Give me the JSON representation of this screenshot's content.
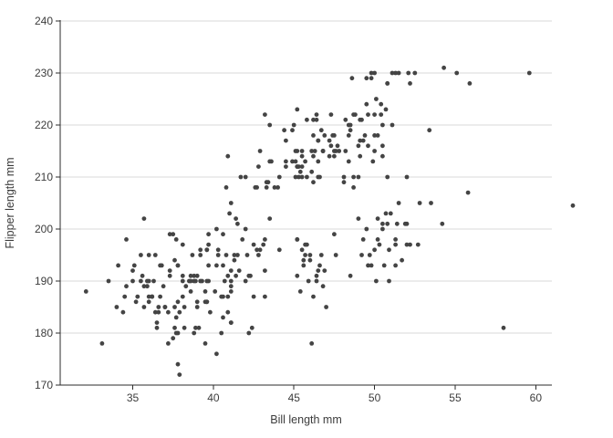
{
  "chart_data": {
    "type": "scatter",
    "title": "",
    "xlabel": "Bill length mm",
    "ylabel": "Flipper length mm",
    "xlim": [
      30.5,
      61.0
    ],
    "ylim": [
      170,
      240
    ],
    "xticks": [
      35,
      40,
      45,
      50,
      55,
      60
    ],
    "yticks": [
      170,
      180,
      190,
      200,
      210,
      220,
      230,
      240
    ],
    "grid": "horizontal",
    "legend_position": "none",
    "colors": {
      "point": "#444444",
      "gridline": "#d8d8d8",
      "axis": "#2b2b2b",
      "text": "#3c3c3c",
      "background": "#ffffff"
    },
    "marker": {
      "shape": "circle",
      "radius": 2.4
    },
    "points": [
      [
        39.1,
        181
      ],
      [
        39.5,
        186
      ],
      [
        40.3,
        195
      ],
      [
        36.7,
        193
      ],
      [
        39.3,
        190
      ],
      [
        38.9,
        181
      ],
      [
        39.2,
        195
      ],
      [
        34.1,
        193
      ],
      [
        42.0,
        190
      ],
      [
        37.8,
        186
      ],
      [
        37.8,
        180
      ],
      [
        41.1,
        182
      ],
      [
        38.6,
        191
      ],
      [
        34.6,
        198
      ],
      [
        36.6,
        185
      ],
      [
        38.7,
        195
      ],
      [
        42.5,
        197
      ],
      [
        34.4,
        184
      ],
      [
        46.0,
        194
      ],
      [
        37.8,
        174
      ],
      [
        37.7,
        180
      ],
      [
        35.9,
        189
      ],
      [
        38.2,
        185
      ],
      [
        38.8,
        180
      ],
      [
        35.3,
        187
      ],
      [
        40.6,
        183
      ],
      [
        40.5,
        187
      ],
      [
        37.9,
        172
      ],
      [
        40.5,
        180
      ],
      [
        39.5,
        178
      ],
      [
        37.2,
        178
      ],
      [
        39.5,
        188
      ],
      [
        40.9,
        184
      ],
      [
        36.4,
        195
      ],
      [
        39.2,
        196
      ],
      [
        38.8,
        190
      ],
      [
        42.2,
        180
      ],
      [
        37.6,
        181
      ],
      [
        39.8,
        184
      ],
      [
        36.5,
        182
      ],
      [
        40.8,
        195
      ],
      [
        36.0,
        186
      ],
      [
        44.1,
        196
      ],
      [
        37.0,
        185
      ],
      [
        39.6,
        190
      ],
      [
        41.1,
        182
      ],
      [
        37.5,
        179
      ],
      [
        36.0,
        190
      ],
      [
        42.3,
        191
      ],
      [
        39.6,
        186
      ],
      [
        40.1,
        188
      ],
      [
        35.0,
        190
      ],
      [
        42.0,
        200
      ],
      [
        34.5,
        187
      ],
      [
        41.4,
        191
      ],
      [
        39.0,
        186
      ],
      [
        40.6,
        193
      ],
      [
        36.5,
        181
      ],
      [
        37.6,
        194
      ],
      [
        35.7,
        185
      ],
      [
        41.3,
        195
      ],
      [
        37.6,
        185
      ],
      [
        41.1,
        192
      ],
      [
        36.4,
        184
      ],
      [
        41.6,
        192
      ],
      [
        35.5,
        195
      ],
      [
        41.1,
        188
      ],
      [
        35.9,
        190
      ],
      [
        41.8,
        198
      ],
      [
        33.5,
        190
      ],
      [
        39.7,
        190
      ],
      [
        39.6,
        196
      ],
      [
        45.8,
        197
      ],
      [
        35.5,
        190
      ],
      [
        42.8,
        195
      ],
      [
        40.9,
        191
      ],
      [
        37.2,
        184
      ],
      [
        36.2,
        187
      ],
      [
        42.1,
        195
      ],
      [
        34.6,
        189
      ],
      [
        42.9,
        196
      ],
      [
        36.7,
        187
      ],
      [
        35.1,
        193
      ],
      [
        37.3,
        191
      ],
      [
        41.3,
        194
      ],
      [
        36.3,
        190
      ],
      [
        36.9,
        189
      ],
      [
        38.3,
        189
      ],
      [
        38.9,
        190
      ],
      [
        35.7,
        202
      ],
      [
        41.1,
        205
      ],
      [
        34.0,
        185
      ],
      [
        39.6,
        186
      ],
      [
        36.2,
        187
      ],
      [
        40.8,
        208
      ],
      [
        38.1,
        190
      ],
      [
        40.3,
        196
      ],
      [
        33.1,
        178
      ],
      [
        43.2,
        192
      ],
      [
        35.0,
        192
      ],
      [
        41.0,
        203
      ],
      [
        37.7,
        183
      ],
      [
        37.8,
        193
      ],
      [
        37.9,
        184
      ],
      [
        39.7,
        199
      ],
      [
        38.6,
        190
      ],
      [
        38.2,
        181
      ],
      [
        38.1,
        197
      ],
      [
        43.2,
        198
      ],
      [
        38.1,
        191
      ],
      [
        45.6,
        193
      ],
      [
        39.7,
        197
      ],
      [
        42.2,
        191
      ],
      [
        39.6,
        196
      ],
      [
        42.7,
        196
      ],
      [
        38.6,
        188
      ],
      [
        37.3,
        199
      ],
      [
        35.7,
        189
      ],
      [
        41.1,
        189
      ],
      [
        36.2,
        187
      ],
      [
        37.7,
        198
      ],
      [
        40.2,
        176
      ],
      [
        41.4,
        202
      ],
      [
        35.2,
        186
      ],
      [
        40.6,
        199
      ],
      [
        38.8,
        191
      ],
      [
        41.5,
        195
      ],
      [
        39.0,
        191
      ],
      [
        44.1,
        210
      ],
      [
        38.5,
        190
      ],
      [
        43.1,
        197
      ],
      [
        36.8,
        193
      ],
      [
        37.5,
        199
      ],
      [
        38.1,
        187
      ],
      [
        41.1,
        190
      ],
      [
        35.6,
        191
      ],
      [
        40.2,
        200
      ],
      [
        37.0,
        185
      ],
      [
        39.7,
        193
      ],
      [
        40.2,
        193
      ],
      [
        40.6,
        187
      ],
      [
        32.1,
        188
      ],
      [
        40.7,
        190
      ],
      [
        37.3,
        192
      ],
      [
        39.0,
        185
      ],
      [
        39.2,
        190
      ],
      [
        36.6,
        184
      ],
      [
        36.0,
        195
      ],
      [
        37.8,
        193
      ],
      [
        36.0,
        187
      ],
      [
        41.5,
        201
      ],
      [
        46.5,
        192
      ],
      [
        50.0,
        196
      ],
      [
        51.3,
        193
      ],
      [
        45.4,
        188
      ],
      [
        52.7,
        197
      ],
      [
        45.2,
        198
      ],
      [
        46.1,
        178
      ],
      [
        51.3,
        197
      ],
      [
        46.0,
        195
      ],
      [
        51.3,
        198
      ],
      [
        46.6,
        193
      ],
      [
        51.7,
        194
      ],
      [
        47.0,
        185
      ],
      [
        52.0,
        201
      ],
      [
        45.9,
        190
      ],
      [
        50.5,
        201
      ],
      [
        50.3,
        197
      ],
      [
        58.0,
        181
      ],
      [
        46.4,
        190
      ],
      [
        49.2,
        195
      ],
      [
        42.4,
        181
      ],
      [
        48.5,
        191
      ],
      [
        43.2,
        187
      ],
      [
        50.6,
        193
      ],
      [
        46.7,
        195
      ],
      [
        52.0,
        197
      ],
      [
        50.5,
        200
      ],
      [
        49.5,
        200
      ],
      [
        46.4,
        191
      ],
      [
        52.8,
        205
      ],
      [
        40.9,
        187
      ],
      [
        54.2,
        201
      ],
      [
        42.5,
        187
      ],
      [
        51.0,
        203
      ],
      [
        49.7,
        195
      ],
      [
        47.5,
        199
      ],
      [
        47.6,
        195
      ],
      [
        52.0,
        210
      ],
      [
        46.9,
        192
      ],
      [
        53.5,
        205
      ],
      [
        49.0,
        210
      ],
      [
        46.2,
        187
      ],
      [
        50.9,
        196
      ],
      [
        45.5,
        196
      ],
      [
        50.9,
        190
      ],
      [
        50.8,
        201
      ],
      [
        50.1,
        190
      ],
      [
        49.0,
        202
      ],
      [
        51.5,
        205
      ],
      [
        49.8,
        193
      ],
      [
        48.1,
        210
      ],
      [
        51.4,
        201
      ],
      [
        45.7,
        197
      ],
      [
        50.7,
        203
      ],
      [
        45.2,
        191
      ],
      [
        52.2,
        197
      ],
      [
        45.2,
        198
      ],
      [
        49.3,
        198
      ],
      [
        50.2,
        202
      ],
      [
        45.6,
        194
      ],
      [
        51.9,
        201
      ],
      [
        46.8,
        189
      ],
      [
        45.7,
        195
      ],
      [
        55.8,
        207
      ],
      [
        43.5,
        202
      ],
      [
        49.6,
        193
      ],
      [
        50.8,
        210
      ],
      [
        50.2,
        198
      ],
      [
        46.1,
        211
      ],
      [
        50.0,
        230
      ],
      [
        48.7,
        210
      ],
      [
        50.0,
        218
      ],
      [
        47.6,
        215
      ],
      [
        46.5,
        210
      ],
      [
        45.4,
        211
      ],
      [
        46.7,
        219
      ],
      [
        43.3,
        209
      ],
      [
        46.8,
        215
      ],
      [
        40.9,
        214
      ],
      [
        49.0,
        216
      ],
      [
        45.5,
        214
      ],
      [
        48.4,
        213
      ],
      [
        45.8,
        210
      ],
      [
        49.3,
        217
      ],
      [
        42.0,
        210
      ],
      [
        49.2,
        221
      ],
      [
        46.2,
        209
      ],
      [
        48.7,
        222
      ],
      [
        50.2,
        218
      ],
      [
        45.1,
        215
      ],
      [
        46.5,
        213
      ],
      [
        46.3,
        215
      ],
      [
        42.9,
        215
      ],
      [
        46.1,
        215
      ],
      [
        44.5,
        213
      ],
      [
        47.8,
        215
      ],
      [
        48.2,
        215
      ],
      [
        50.0,
        215
      ],
      [
        47.3,
        222
      ],
      [
        42.8,
        212
      ],
      [
        45.1,
        213
      ],
      [
        59.6,
        230
      ],
      [
        49.1,
        217
      ],
      [
        48.4,
        220
      ],
      [
        42.6,
        208
      ],
      [
        44.4,
        219
      ],
      [
        44.0,
        208
      ],
      [
        48.7,
        208
      ],
      [
        42.7,
        208
      ],
      [
        49.6,
        216
      ],
      [
        45.3,
        210
      ],
      [
        49.6,
        222
      ],
      [
        50.5,
        214
      ],
      [
        43.6,
        213
      ],
      [
        45.5,
        210
      ],
      [
        50.5,
        220
      ],
      [
        44.9,
        213
      ],
      [
        45.2,
        215
      ],
      [
        46.6,
        210
      ],
      [
        48.5,
        220
      ],
      [
        45.1,
        210
      ],
      [
        50.1,
        225
      ],
      [
        46.5,
        217
      ],
      [
        45.0,
        220
      ],
      [
        43.8,
        208
      ],
      [
        45.5,
        215
      ],
      [
        43.2,
        222
      ],
      [
        50.4,
        222
      ],
      [
        45.3,
        212
      ],
      [
        46.2,
        221
      ],
      [
        45.7,
        213
      ],
      [
        54.3,
        231
      ],
      [
        45.8,
        221
      ],
      [
        49.8,
        230
      ],
      [
        46.2,
        214
      ],
      [
        49.5,
        229
      ],
      [
        43.5,
        220
      ],
      [
        50.7,
        223
      ],
      [
        47.7,
        216
      ],
      [
        46.4,
        221
      ],
      [
        48.2,
        221
      ],
      [
        46.5,
        217
      ],
      [
        46.4,
        222
      ],
      [
        48.6,
        229
      ],
      [
        47.5,
        215
      ],
      [
        51.1,
        220
      ],
      [
        45.2,
        223
      ],
      [
        45.2,
        212
      ],
      [
        49.1,
        221
      ],
      [
        52.5,
        230
      ],
      [
        47.4,
        218
      ],
      [
        50.0,
        222
      ],
      [
        44.9,
        219
      ],
      [
        50.8,
        228
      ],
      [
        43.4,
        209
      ],
      [
        51.3,
        230
      ],
      [
        47.5,
        214
      ],
      [
        52.1,
        230
      ],
      [
        47.5,
        218
      ],
      [
        52.2,
        228
      ],
      [
        45.5,
        212
      ],
      [
        49.5,
        224
      ],
      [
        44.5,
        212
      ],
      [
        50.8,
        228
      ],
      [
        49.4,
        218
      ],
      [
        46.9,
        218
      ],
      [
        48.4,
        218
      ],
      [
        51.1,
        230
      ],
      [
        48.5,
        219
      ],
      [
        55.9,
        228
      ],
      [
        47.2,
        217
      ],
      [
        49.1,
        214
      ],
      [
        47.3,
        216
      ],
      [
        46.8,
        215
      ],
      [
        41.7,
        210
      ],
      [
        53.4,
        219
      ],
      [
        43.3,
        208
      ],
      [
        48.1,
        209
      ],
      [
        50.5,
        216
      ],
      [
        49.8,
        229
      ],
      [
        43.5,
        213
      ],
      [
        51.5,
        230
      ],
      [
        46.2,
        218
      ],
      [
        55.1,
        230
      ],
      [
        44.5,
        217
      ],
      [
        48.8,
        222
      ],
      [
        47.2,
        214
      ],
      [
        46.8,
        215
      ],
      [
        50.4,
        224
      ],
      [
        45.2,
        212
      ],
      [
        49.9,
        213
      ],
      [
        62.3,
        204.5
      ]
    ]
  }
}
